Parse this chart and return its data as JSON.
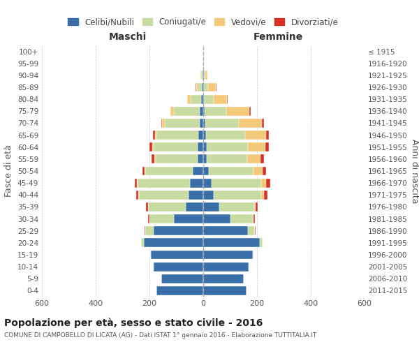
{
  "age_groups": [
    "0-4",
    "5-9",
    "10-14",
    "15-19",
    "20-24",
    "25-29",
    "30-34",
    "35-39",
    "40-44",
    "45-49",
    "50-54",
    "55-59",
    "60-64",
    "65-69",
    "70-74",
    "75-79",
    "80-84",
    "85-89",
    "90-94",
    "95-99",
    "100+"
  ],
  "birth_years": [
    "2011-2015",
    "2006-2010",
    "2001-2005",
    "1996-2000",
    "1991-1995",
    "1986-1990",
    "1981-1985",
    "1976-1980",
    "1971-1975",
    "1966-1970",
    "1961-1965",
    "1956-1960",
    "1951-1955",
    "1946-1950",
    "1941-1945",
    "1936-1940",
    "1931-1935",
    "1926-1930",
    "1921-1925",
    "1916-1920",
    "≤ 1915"
  ],
  "maschi": {
    "celibi": [
      175,
      155,
      185,
      195,
      220,
      185,
      110,
      65,
      55,
      50,
      40,
      22,
      20,
      18,
      14,
      14,
      8,
      4,
      3,
      1,
      0
    ],
    "coniugati": [
      0,
      1,
      2,
      3,
      10,
      30,
      90,
      140,
      185,
      195,
      175,
      155,
      165,
      155,
      130,
      95,
      40,
      18,
      5,
      1,
      0
    ],
    "vedovi": [
      0,
      0,
      0,
      0,
      0,
      0,
      1,
      1,
      2,
      2,
      4,
      4,
      5,
      6,
      8,
      12,
      12,
      5,
      2,
      0,
      0
    ],
    "divorziati": [
      0,
      0,
      0,
      0,
      1,
      2,
      5,
      8,
      8,
      8,
      8,
      10,
      10,
      8,
      5,
      2,
      1,
      1,
      0,
      0,
      0
    ]
  },
  "femmine": {
    "nubili": [
      160,
      150,
      170,
      185,
      210,
      165,
      100,
      60,
      40,
      30,
      22,
      14,
      12,
      10,
      8,
      6,
      3,
      3,
      2,
      0,
      0
    ],
    "coniugate": [
      0,
      1,
      1,
      3,
      10,
      25,
      85,
      130,
      175,
      185,
      165,
      150,
      155,
      145,
      125,
      80,
      35,
      15,
      5,
      1,
      0
    ],
    "vedove": [
      0,
      0,
      0,
      0,
      1,
      2,
      3,
      5,
      12,
      20,
      35,
      50,
      65,
      80,
      85,
      85,
      50,
      30,
      8,
      2,
      0
    ],
    "divorziate": [
      0,
      0,
      0,
      0,
      1,
      2,
      5,
      8,
      12,
      14,
      12,
      12,
      12,
      10,
      8,
      5,
      2,
      1,
      0,
      0,
      0
    ]
  },
  "colors": {
    "celibi": "#3a6ea8",
    "coniugati": "#c8dba0",
    "vedovi": "#f5c97a",
    "divorziati": "#d93025"
  },
  "xlim": 600,
  "title": "Popolazione per età, sesso e stato civile - 2016",
  "subtitle": "COMUNE DI CAMPOBELLO DI LICATA (AG) - Dati ISTAT 1° gennaio 2016 - Elaborazione TUTTITALIA.IT",
  "ylabel": "Fasce di età",
  "y2label": "Anni di nascita",
  "legend_labels": [
    "Celibi/Nubili",
    "Coniugati/e",
    "Vedovi/e",
    "Divorziati/e"
  ]
}
